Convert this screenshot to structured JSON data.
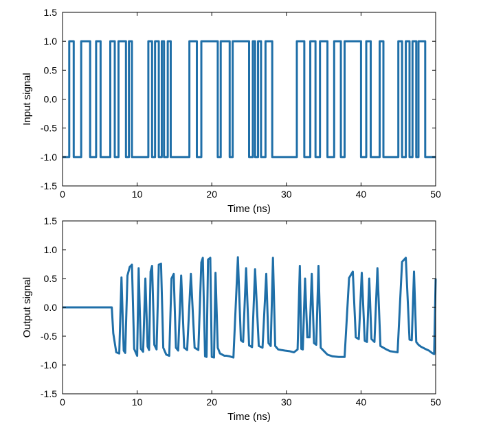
{
  "chart_data": [
    {
      "type": "line",
      "xlabel": "Time (ns)",
      "ylabel": "Input signal",
      "xlim": [
        0,
        50
      ],
      "ylim": [
        -1.5,
        1.5
      ],
      "xticks": [
        "0",
        "10",
        "20",
        "30",
        "40",
        "50"
      ],
      "yticks": [
        "-1.5",
        "-1.0",
        "-0.5",
        "0.0",
        "0.5",
        "1.0",
        "1.5"
      ],
      "grid": false,
      "color": "#1f6fa8",
      "series": [
        {
          "x": [
            0,
            0.9,
            0.9,
            1.5,
            1.5,
            2.5,
            2.5,
            3.7,
            3.7,
            4.5,
            4.5,
            5.1,
            5.1,
            6.4,
            6.4,
            7.0,
            7.0,
            7.5,
            7.5,
            8.5,
            8.5,
            8.9,
            8.9,
            9.3,
            9.3,
            11.5,
            11.5,
            12.0,
            12.0,
            12.4,
            12.4,
            12.9,
            12.9,
            13.3,
            13.3,
            13.6,
            13.6,
            14.1,
            14.1,
            14.5,
            14.5,
            15.0,
            15.0,
            17.0,
            17.0,
            18.0,
            18.0,
            18.6,
            18.6,
            20.8,
            20.8,
            21.2,
            21.2,
            22.4,
            22.4,
            22.8,
            22.8,
            25.0,
            25.0,
            25.5,
            25.5,
            25.8,
            25.8,
            26.2,
            26.2,
            26.6,
            26.6,
            27.2,
            27.2,
            28.1,
            28.1,
            28.6,
            28.6,
            31.4,
            31.4,
            32.4,
            32.4,
            33.2,
            33.2,
            33.9,
            33.9,
            34.5,
            34.5,
            35.5,
            35.5,
            36.4,
            36.4,
            37.3,
            37.3,
            37.8,
            37.8,
            40.0,
            40.0,
            40.7,
            40.7,
            41.3,
            41.3,
            42.5,
            42.5,
            43.0,
            43.0,
            45.0,
            45.0,
            45.5,
            45.5,
            46.0,
            46.0,
            46.5,
            46.5,
            46.9,
            46.9,
            47.4,
            47.4,
            47.7,
            47.7,
            48.6,
            48.6,
            50
          ],
          "y": [
            -1,
            -1,
            1,
            1,
            -1,
            -1,
            1,
            1,
            -1,
            -1,
            1,
            1,
            -1,
            -1,
            1,
            1,
            -1,
            -1,
            1,
            1,
            -1,
            -1,
            1,
            1,
            -1,
            -1,
            1,
            1,
            -1,
            -1,
            1,
            1,
            -1,
            -1,
            1,
            1,
            -1,
            -1,
            1,
            1,
            -1,
            -1,
            -1,
            -1,
            1,
            1,
            -1,
            -1,
            1,
            1,
            -1,
            -1,
            1,
            1,
            -1,
            -1,
            1,
            1,
            -1,
            -1,
            1,
            1,
            -1,
            -1,
            1,
            1,
            -1,
            -1,
            1,
            1,
            -1,
            -1,
            -1,
            -1,
            1,
            1,
            -1,
            -1,
            1,
            1,
            -1,
            -1,
            1,
            1,
            -1,
            -1,
            1,
            1,
            -1,
            -1,
            1,
            1,
            -1,
            -1,
            1,
            1,
            -1,
            -1,
            1,
            1,
            -1,
            -1,
            1,
            1,
            -1,
            -1,
            1,
            1,
            -1,
            -1,
            1,
            1,
            -1,
            -1,
            1,
            1,
            -1,
            -1
          ]
        }
      ]
    },
    {
      "type": "line",
      "xlabel": "Time (ns)",
      "ylabel": "Output signal",
      "xlim": [
        0,
        50
      ],
      "ylim": [
        -1.5,
        1.5
      ],
      "xticks": [
        "0",
        "10",
        "20",
        "30",
        "40",
        "50"
      ],
      "yticks": [
        "-1.5",
        "-1.0",
        "-0.5",
        "0.0",
        "0.5",
        "1.0",
        "1.5"
      ],
      "grid": false,
      "color": "#1f6fa8",
      "series": [
        {
          "x": [
            0,
            6.6,
            6.8,
            7.2,
            7.6,
            7.9,
            8.2,
            8.4,
            8.7,
            9.0,
            9.3,
            9.6,
            10.0,
            10.2,
            10.5,
            10.8,
            11.1,
            11.4,
            11.6,
            11.8,
            12.0,
            12.3,
            12.6,
            12.9,
            13.2,
            13.5,
            13.9,
            14.3,
            14.6,
            14.9,
            15.2,
            15.5,
            15.9,
            16.3,
            16.7,
            17.2,
            17.7,
            18.2,
            18.6,
            18.8,
            19.1,
            19.3,
            19.5,
            19.8,
            20.0,
            20.3,
            20.5,
            20.8,
            21.1,
            21.4,
            21.7,
            22.0,
            22.4,
            22.9,
            23.5,
            23.9,
            24.2,
            24.6,
            25.0,
            25.4,
            25.8,
            26.3,
            26.8,
            27.3,
            27.6,
            27.9,
            28.2,
            28.5,
            28.9,
            29.3,
            29.8,
            30.4,
            31.0,
            31.5,
            31.8,
            32.0,
            32.2,
            32.5,
            32.8,
            33.1,
            33.4,
            33.7,
            34.0,
            34.3,
            34.6,
            34.9,
            35.2,
            35.5,
            36.2,
            37.0,
            37.8,
            38.4,
            38.9,
            39.3,
            39.7,
            40.1,
            40.5,
            40.8,
            41.1,
            41.4,
            41.8,
            42.2,
            42.6,
            43.0,
            43.4,
            43.9,
            44.4,
            44.9,
            45.5,
            46.0,
            46.5,
            46.8,
            47.1,
            47.4,
            47.7,
            48.0,
            48.3,
            48.6,
            49.1,
            49.5,
            49.8,
            50.0
          ],
          "y": [
            0,
            0,
            -0.45,
            -0.78,
            -0.8,
            0.52,
            -0.75,
            -0.79,
            0.55,
            0.7,
            0.74,
            -0.72,
            -0.84,
            0.68,
            -0.72,
            -0.77,
            0.5,
            -0.68,
            -0.74,
            0.62,
            0.72,
            -0.65,
            -0.73,
            0.74,
            0.76,
            -0.7,
            -0.82,
            -0.84,
            0.5,
            0.58,
            -0.7,
            -0.75,
            0.55,
            -0.7,
            -0.74,
            0.58,
            -0.7,
            -0.74,
            0.78,
            0.86,
            -0.85,
            -0.86,
            0.83,
            0.86,
            -0.86,
            -0.87,
            0.6,
            -0.7,
            -0.8,
            -0.82,
            -0.84,
            -0.84,
            -0.85,
            -0.87,
            0.87,
            -0.57,
            -0.6,
            0.68,
            -0.66,
            -0.69,
            0.66,
            -0.67,
            -0.7,
            0.58,
            -0.62,
            -0.67,
            0.86,
            -0.67,
            -0.73,
            -0.74,
            -0.75,
            -0.76,
            -0.78,
            -0.73,
            0.72,
            -0.72,
            -0.73,
            0.5,
            -0.52,
            -0.52,
            0.58,
            -0.62,
            -0.65,
            0.72,
            -0.7,
            -0.74,
            -0.78,
            -0.82,
            -0.85,
            -0.86,
            -0.86,
            0.51,
            0.62,
            -0.52,
            -0.55,
            0.6,
            -0.58,
            -0.6,
            0.5,
            -0.55,
            -0.6,
            0.68,
            -0.67,
            -0.7,
            -0.73,
            -0.76,
            -0.77,
            -0.78,
            0.79,
            0.86,
            -0.56,
            -0.57,
            0.62,
            -0.6,
            -0.65,
            -0.68,
            -0.7,
            -0.72,
            -0.75,
            -0.79,
            -0.81,
            0.5
          ]
        }
      ]
    }
  ]
}
